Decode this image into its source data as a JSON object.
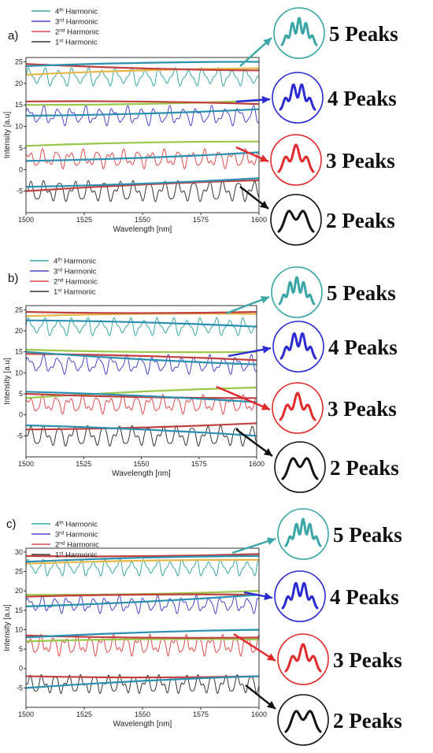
{
  "chart_data": [
    {
      "type": "line",
      "panel_label": "a)",
      "xlabel": "Wavelength [nm]",
      "ylabel": "Intensity [a.u]",
      "xlim": [
        1500,
        1600
      ],
      "ylim": [
        -10,
        26
      ],
      "x_ticks": [
        1500,
        1525,
        1550,
        1575,
        1600
      ],
      "y_ticks": [
        -5,
        0,
        5,
        10,
        15,
        20,
        25
      ],
      "series": [
        {
          "name": "4",
          "legend_suffix": " Harmonic",
          "legend_sup": "th",
          "color": "#3aa6a6",
          "base": 21.5,
          "amplitude": 2.5,
          "period": 6.2,
          "peaks": 5
        },
        {
          "name": "3",
          "legend_suffix": " Harmonic",
          "legend_sup": "rd",
          "color": "#4a46c8",
          "base": 12.5,
          "amplitude": 2.5,
          "period": 6.0,
          "peaks": 4
        },
        {
          "name": "2",
          "legend_suffix": " Harmonic",
          "legend_sup": "nd",
          "color": "#e04a4a",
          "base": 2.5,
          "amplitude": 2.5,
          "period": 5.8,
          "peaks": 3
        },
        {
          "name": "1",
          "legend_suffix": " Harmonic",
          "legend_sup": "st",
          "color": "#333333",
          "base": -5,
          "amplitude": 3.0,
          "period": 6.4,
          "peaks": 2
        }
      ],
      "envelopes": [
        {
          "color": "#e6b84a",
          "y_start": 22,
          "y_end": 23.5
        },
        {
          "color": "#c04040",
          "y_start": 24.5,
          "y_end": 23
        },
        {
          "color": "#2a8fb0",
          "y_start": 24,
          "y_end": 25
        },
        {
          "color": "#9ac84a",
          "y_start": 15,
          "y_end": 16
        },
        {
          "color": "#c04040",
          "y_start": 15.8,
          "y_end": 15.2
        },
        {
          "color": "#2a8fb0",
          "y_start": 12.5,
          "y_end": 14
        },
        {
          "color": "#9ac84a",
          "y_start": 5.5,
          "y_end": 6.5
        },
        {
          "color": "#2a8fb0",
          "y_start": 2,
          "y_end": 4
        },
        {
          "color": "#c04040",
          "y_start": -5,
          "y_end": -2.5
        },
        {
          "color": "#2a8fb0",
          "y_start": -4,
          "y_end": -2
        }
      ]
    },
    {
      "type": "line",
      "panel_label": "b)",
      "xlabel": "Wavelength [nm]",
      "ylabel": "Intensity [a.u]",
      "xlim": [
        1500,
        1600
      ],
      "ylim": [
        -10,
        26
      ],
      "x_ticks": [
        1500,
        1525,
        1550,
        1575,
        1600
      ],
      "y_ticks": [
        -5,
        0,
        5,
        10,
        15,
        20,
        25
      ],
      "series": [
        {
          "name": "4",
          "legend_suffix": " Harmonic",
          "legend_sup": "th",
          "color": "#3aa6a6",
          "base": 21,
          "amplitude": 2.5,
          "period": 6.2,
          "peaks": 5
        },
        {
          "name": "3",
          "legend_suffix": " Harmonic",
          "legend_sup": "rd",
          "color": "#4a46c8",
          "base": 12,
          "amplitude": 2.5,
          "period": 6.0,
          "peaks": 4
        },
        {
          "name": "2",
          "legend_suffix": " Harmonic",
          "legend_sup": "nd",
          "color": "#e04a4a",
          "base": 2.5,
          "amplitude": 2.5,
          "period": 5.8,
          "peaks": 3
        },
        {
          "name": "1",
          "legend_suffix": " Harmonic",
          "legend_sup": "st",
          "color": "#333333",
          "base": -5,
          "amplitude": 3.0,
          "period": 6.4,
          "peaks": 2
        }
      ],
      "envelopes": [
        {
          "color": "#e6b84a",
          "y_start": 23.5,
          "y_end": 24
        },
        {
          "color": "#c04040",
          "y_start": 24.5,
          "y_end": 24.5
        },
        {
          "color": "#2a8fb0",
          "y_start": 22.5,
          "y_end": 21
        },
        {
          "color": "#9ac84a",
          "y_start": 15.5,
          "y_end": 15
        },
        {
          "color": "#c04040",
          "y_start": 14.5,
          "y_end": 13
        },
        {
          "color": "#2a8fb0",
          "y_start": 15,
          "y_end": 12
        },
        {
          "color": "#9ac84a",
          "y_start": 4,
          "y_end": 6.5
        },
        {
          "color": "#c04040",
          "y_start": 5,
          "y_end": 4
        },
        {
          "color": "#2a8fb0",
          "y_start": 5.5,
          "y_end": 3
        },
        {
          "color": "#c04040",
          "y_start": -3.5,
          "y_end": -2
        },
        {
          "color": "#2a8fb0",
          "y_start": -2.5,
          "y_end": -5
        }
      ]
    },
    {
      "type": "line",
      "panel_label": "c)",
      "xlabel": "Wavelength [nm]",
      "ylabel": "Intensity [a.u]",
      "xlim": [
        1500,
        1600
      ],
      "ylim": [
        -10,
        31
      ],
      "x_ticks": [
        1500,
        1525,
        1550,
        1575,
        1600
      ],
      "y_ticks": [
        -5,
        0,
        5,
        10,
        15,
        20,
        25,
        30
      ],
      "series": [
        {
          "name": "4",
          "legend_suffix": " Harmonic",
          "legend_sup": "th",
          "color": "#3aa6a6",
          "base": 26,
          "amplitude": 2.5,
          "period": 5.5,
          "peaks": 5
        },
        {
          "name": "3",
          "legend_suffix": " Harmonic",
          "legend_sup": "rd",
          "color": "#4a46c8",
          "base": 16.5,
          "amplitude": 2.5,
          "period": 5.5,
          "peaks": 4
        },
        {
          "name": "2",
          "legend_suffix": " Harmonic",
          "legend_sup": "nd",
          "color": "#e04a4a",
          "base": 6,
          "amplitude": 3.0,
          "period": 5.2,
          "peaks": 3
        },
        {
          "name": "1",
          "legend_suffix": " Harmonic",
          "legend_sup": "st",
          "color": "#333333",
          "base": -4,
          "amplitude": 3.0,
          "period": 5.6,
          "peaks": 2
        }
      ],
      "envelopes": [
        {
          "color": "#e6b84a",
          "y_start": 27,
          "y_end": 28
        },
        {
          "color": "#c04040",
          "y_start": 29,
          "y_end": 29.5
        },
        {
          "color": "#2a8fb0",
          "y_start": 27.5,
          "y_end": 29
        },
        {
          "color": "#9ac84a",
          "y_start": 19,
          "y_end": 20
        },
        {
          "color": "#c04040",
          "y_start": 18.5,
          "y_end": 19
        },
        {
          "color": "#2a8fb0",
          "y_start": 16,
          "y_end": 19
        },
        {
          "color": "#9ac84a",
          "y_start": 7,
          "y_end": 7.5
        },
        {
          "color": "#c04040",
          "y_start": 8.5,
          "y_end": 8
        },
        {
          "color": "#2a8fb0",
          "y_start": 8,
          "y_end": 10
        },
        {
          "color": "#c04040",
          "y_start": -2,
          "y_end": -2
        },
        {
          "color": "#2a8fb0",
          "y_start": -5,
          "y_end": -2
        }
      ]
    }
  ],
  "peak_callouts": [
    [
      {
        "label": "5 Peaks",
        "color": "#3aa6a6",
        "peaks": 5
      },
      {
        "label": "4 Peaks",
        "color": "#2a2ad0",
        "peaks": 4
      },
      {
        "label": "3 Peaks",
        "color": "#e02a2a",
        "peaks": 3
      },
      {
        "label": "2 Peaks",
        "color": "#111111",
        "peaks": 2
      }
    ],
    [
      {
        "label": "5 Peaks",
        "color": "#3aa6a6",
        "peaks": 5
      },
      {
        "label": "4 Peaks",
        "color": "#2a2ad0",
        "peaks": 4
      },
      {
        "label": "3 Peaks",
        "color": "#e02a2a",
        "peaks": 3
      },
      {
        "label": "2 Peaks",
        "color": "#111111",
        "peaks": 2
      }
    ],
    [
      {
        "label": "5 Peaks",
        "color": "#3aa6a6",
        "peaks": 5
      },
      {
        "label": "4 Peaks",
        "color": "#2a2ad0",
        "peaks": 4
      },
      {
        "label": "3 Peaks",
        "color": "#e02a2a",
        "peaks": 3
      },
      {
        "label": "2 Peaks",
        "color": "#111111",
        "peaks": 2
      }
    ]
  ]
}
